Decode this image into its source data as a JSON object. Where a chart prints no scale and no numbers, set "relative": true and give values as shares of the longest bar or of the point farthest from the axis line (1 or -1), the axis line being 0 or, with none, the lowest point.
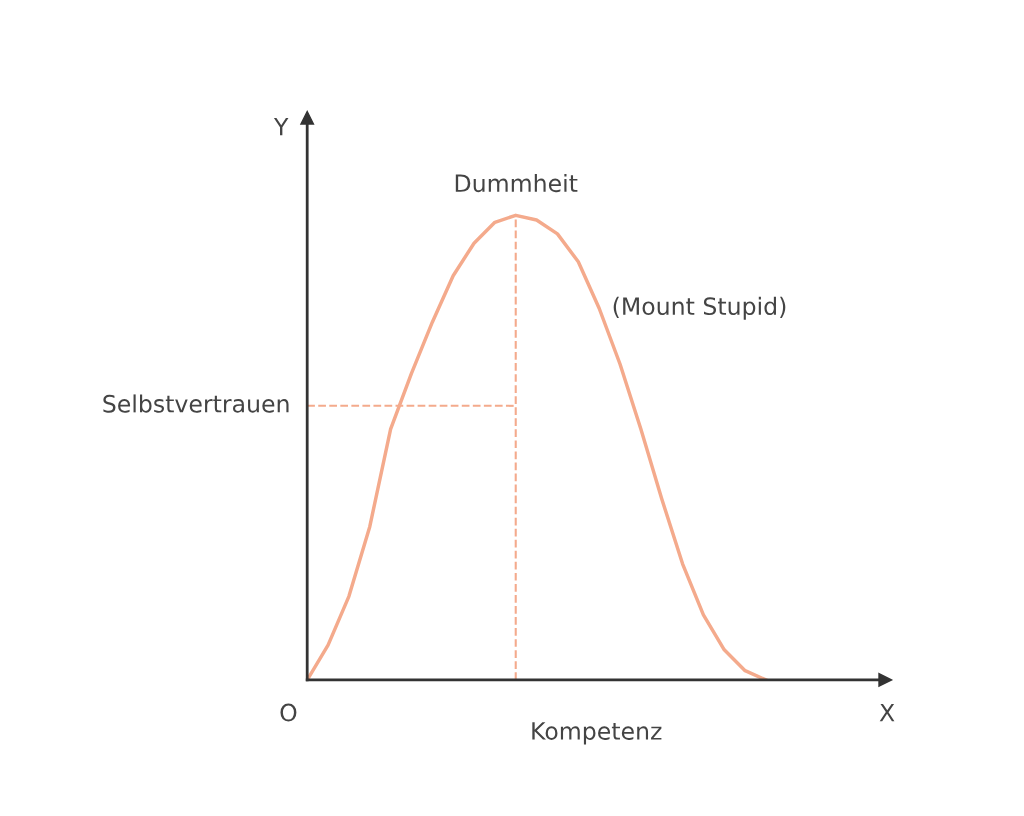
{
  "chart_data": {
    "type": "line",
    "relative": true,
    "xlabel": "Kompetenz",
    "ylabel": "Y",
    "categories": [
      null,
      null,
      null,
      null,
      null,
      null,
      null,
      null,
      null,
      null,
      null,
      null,
      null,
      null,
      null,
      null,
      null,
      null,
      null,
      null,
      null,
      null,
      null
    ],
    "series": [
      {
        "color": "#f4aa8c",
        "values": [
          0,
          0.075,
          0.18,
          0.33,
          0.54,
          0.66,
          0.77,
          0.87,
          0.94,
          0.985,
          1,
          0.99,
          0.96,
          0.9,
          0.8,
          0.68,
          0.54,
          0.39,
          0.25,
          0.14,
          0.065,
          0.02,
          0
        ]
      }
    ],
    "ref_lines": [
      {
        "axis": "y",
        "value": 0.59,
        "label": "Selbstvertrauen",
        "color": "#f4aa8c",
        "line_style": "dashed"
      }
    ],
    "annotations": [
      "Dummheit",
      "(Mount Stupid)",
      "X",
      "O"
    ],
    "legend": false,
    "marker": "none",
    "line_style": "solid"
  }
}
